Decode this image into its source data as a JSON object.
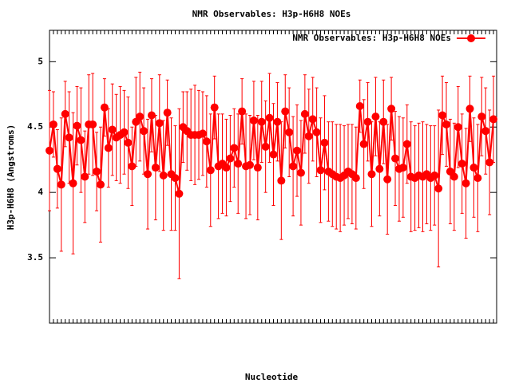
{
  "chart_data": {
    "type": "line",
    "title": "NMR Observables: H3p-H6H8 NOEs",
    "x_label": "Nucleotide",
    "y_label": "H3p-H6H8 (Angstroms)",
    "legend": "top-right",
    "ylim": [
      3.0,
      5.24
    ],
    "yticks": [
      3.5,
      4,
      4.5,
      5
    ],
    "categories": [
      null,
      null,
      null,
      null,
      null,
      null,
      null,
      null,
      null,
      null,
      null,
      null,
      null,
      null,
      null,
      null,
      null,
      null,
      null,
      null,
      null,
      null,
      null,
      null,
      null,
      null,
      null,
      null,
      null,
      null,
      null,
      null,
      null,
      null,
      null,
      null,
      null,
      null,
      null,
      null,
      null,
      null,
      null,
      null,
      null,
      null,
      null,
      null,
      null,
      null,
      null,
      null,
      null,
      null,
      null,
      null,
      null,
      null,
      null,
      null,
      null,
      null,
      null,
      null,
      null,
      null,
      null,
      null,
      null,
      null,
      null,
      null,
      null,
      null,
      null,
      null,
      null,
      null,
      null,
      null,
      null,
      null,
      null,
      null,
      null,
      null,
      null,
      null,
      null,
      null,
      null,
      null,
      null,
      null,
      null,
      null,
      null,
      null,
      null,
      null,
      null,
      null,
      null,
      null,
      null,
      null,
      null,
      null,
      null,
      null,
      null,
      null,
      null,
      null
    ],
    "series": [
      {
        "name": "NMR Observables: H3p-H6H8 NOEs",
        "color": "#ff0000",
        "values": [
          4.32,
          4.52,
          4.18,
          4.06,
          4.6,
          4.42,
          4.07,
          4.51,
          4.4,
          4.12,
          4.52,
          4.52,
          4.16,
          4.06,
          4.65,
          4.34,
          4.48,
          4.42,
          4.44,
          4.46,
          4.38,
          4.2,
          4.54,
          4.58,
          4.47,
          4.14,
          4.59,
          4.19,
          4.53,
          4.13,
          4.61,
          4.14,
          4.11,
          3.99,
          4.5,
          4.47,
          4.44,
          4.44,
          4.44,
          4.45,
          4.39,
          4.17,
          4.65,
          4.2,
          4.22,
          4.19,
          4.26,
          4.34,
          4.22,
          4.62,
          4.2,
          4.21,
          4.55,
          4.19,
          4.54,
          4.35,
          4.57,
          4.29,
          4.54,
          4.09,
          4.62,
          4.46,
          4.2,
          4.32,
          4.15,
          4.6,
          4.43,
          4.56,
          4.46,
          4.17,
          4.38,
          4.16,
          4.14,
          4.12,
          4.11,
          4.13,
          4.16,
          4.14,
          4.11,
          4.66,
          4.37,
          4.54,
          4.14,
          4.58,
          4.18,
          4.54,
          4.1,
          4.64,
          4.26,
          4.18,
          4.19,
          4.37,
          4.12,
          4.11,
          4.13,
          4.12,
          4.14,
          4.11,
          4.13,
          4.03,
          4.59,
          4.52,
          4.16,
          4.12,
          4.5,
          4.22,
          4.07,
          4.64,
          4.19,
          4.11,
          4.58,
          4.47,
          4.23,
          4.56
        ],
        "errors": [
          0.46,
          0.25,
          0.3,
          0.51,
          0.25,
          0.35,
          0.54,
          0.3,
          0.4,
          0.35,
          0.38,
          0.39,
          0.3,
          0.44,
          0.22,
          0.3,
          0.35,
          0.33,
          0.37,
          0.32,
          0.35,
          0.3,
          0.34,
          0.34,
          0.33,
          0.42,
          0.28,
          0.4,
          0.37,
          0.42,
          0.25,
          0.43,
          0.4,
          0.65,
          0.27,
          0.3,
          0.35,
          0.38,
          0.34,
          0.32,
          0.35,
          0.43,
          0.24,
          0.4,
          0.38,
          0.37,
          0.33,
          0.3,
          0.38,
          0.25,
          0.4,
          0.38,
          0.3,
          0.4,
          0.31,
          0.35,
          0.34,
          0.39,
          0.3,
          0.45,
          0.28,
          0.34,
          0.38,
          0.35,
          0.4,
          0.3,
          0.36,
          0.32,
          0.34,
          0.4,
          0.36,
          0.38,
          0.4,
          0.4,
          0.41,
          0.38,
          0.36,
          0.38,
          0.39,
          0.2,
          0.34,
          0.3,
          0.4,
          0.3,
          0.36,
          0.32,
          0.42,
          0.24,
          0.36,
          0.4,
          0.38,
          0.3,
          0.42,
          0.4,
          0.4,
          0.42,
          0.38,
          0.4,
          0.38,
          0.6,
          0.3,
          0.32,
          0.4,
          0.41,
          0.31,
          0.38,
          0.42,
          0.25,
          0.38,
          0.41,
          0.3,
          0.33,
          0.4,
          0.33
        ]
      }
    ]
  }
}
